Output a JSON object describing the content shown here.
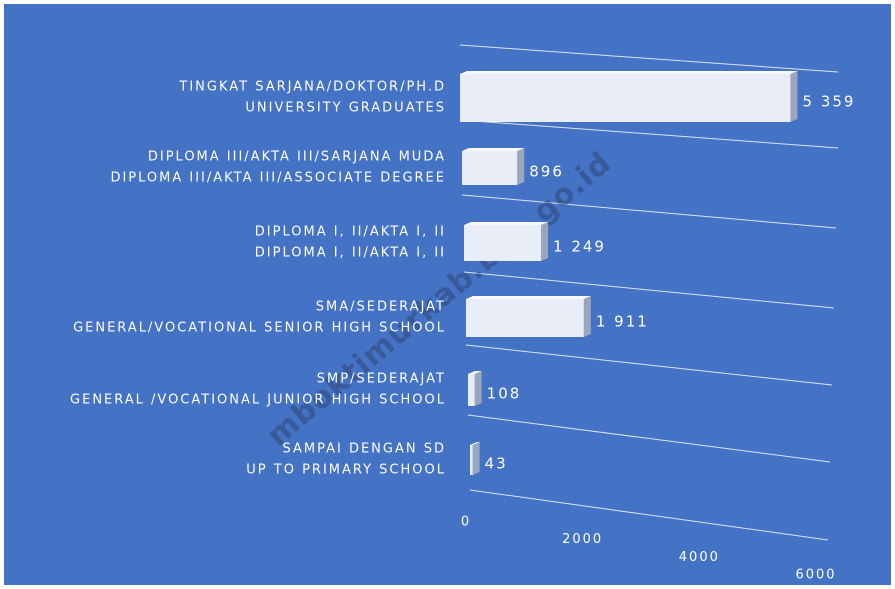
{
  "chart_data": {
    "type": "bar",
    "orientation": "horizontal",
    "categories": [
      [
        "TINGKAT SARJANA/DOKTOR/PH.D",
        "UNIVERSITY GRADUATES"
      ],
      [
        "DIPLOMA III/AKTA III/SARJANA MUDA",
        "DIPLOMA III/AKTA III/ASSOCIATE DEGREE"
      ],
      [
        "DIPLOMA I, II/AKTA I, II",
        "DIPLOMA I, II/AKTA I, II"
      ],
      [
        "SMA/SEDERAJAT",
        "GENERAL/VOCATIONAL SENIOR HIGH SCHOOL"
      ],
      [
        "SMP/SEDERAJAT",
        "GENERAL /VOCATIONAL JUNIOR HIGH SCHOOL"
      ],
      [
        "SAMPAI DENGAN SD",
        "UP TO PRIMARY SCHOOL"
      ]
    ],
    "values": [
      5359,
      896,
      1249,
      1911,
      108,
      43
    ],
    "value_labels": [
      "5 359",
      "896",
      "1 249",
      "1 911",
      "108",
      "43"
    ],
    "color": "#e9edf7",
    "xlim": [
      0,
      6000
    ],
    "xticks": [
      0,
      2000,
      4000,
      6000
    ],
    "background": "#4472c4",
    "watermark": "mboktimurkab.bps.go.id"
  }
}
